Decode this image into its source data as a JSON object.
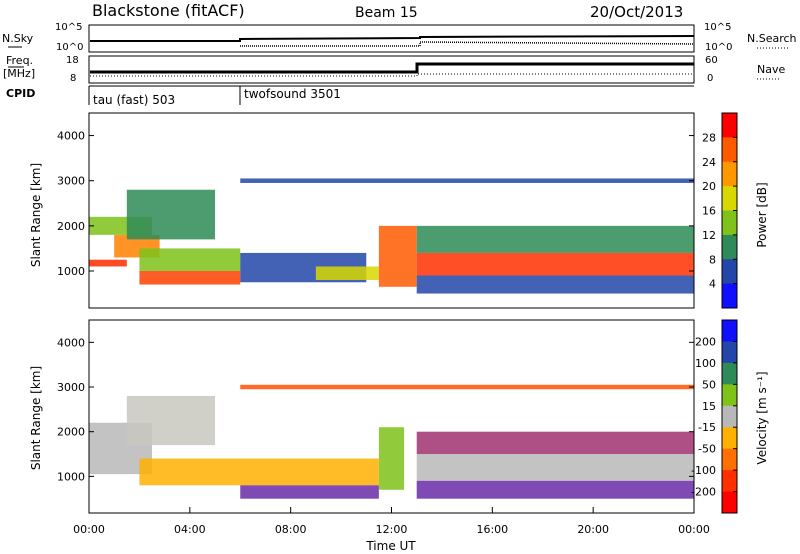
{
  "header": {
    "station": "Blackstone (fitACF)",
    "beam": "Beam 15",
    "date": "20/Oct/2013"
  },
  "top_panels": {
    "nsky_label": "N.Sky",
    "nsearch_label": "N.Search",
    "nsky_ticks": [
      "10^5",
      "10^0"
    ],
    "nsearch_ticks": [
      "10^5",
      "10^0"
    ],
    "freq_label_1": "Freq.",
    "freq_label_2": "[MHz]",
    "freq_ticks": [
      "18",
      "8"
    ],
    "nave_label": "Nave",
    "nave_ticks": [
      "60",
      "0"
    ],
    "cpid_label": "CPID",
    "cpid_segments": [
      {
        "label": "tau (fast) 503",
        "start_hour": 0
      },
      {
        "label": "twofsound 3501",
        "start_hour": 6
      }
    ],
    "freq_mode_change_hour": 13
  },
  "chart_data": [
    {
      "type": "heatmap",
      "name": "power",
      "ylabel": "Slant Range [km]",
      "colorbar_label": "Power [dB]",
      "colorbar_ticks": [
        "28",
        "24",
        "20",
        "16",
        "12",
        "8",
        "4"
      ],
      "colorbar_colors": [
        "#ff0000",
        "#ff5a00",
        "#ff9800",
        "#d8d800",
        "#7ec21a",
        "#2e8b57",
        "#2346a8",
        "#1010ff"
      ],
      "ylim": [
        180,
        4500
      ],
      "yticks": [
        "4000",
        "3000",
        "2000",
        "1000"
      ],
      "bands": [
        {
          "x0": 0.0,
          "x1": 1.5,
          "r0": 1100,
          "r1": 1250,
          "color": "#ff2a00"
        },
        {
          "x0": 1.0,
          "x1": 2.8,
          "r0": 1300,
          "r1": 1800,
          "color": "#ff8000"
        },
        {
          "x0": 0.0,
          "x1": 2.5,
          "r0": 1800,
          "r1": 2200,
          "color": "#7ec21a"
        },
        {
          "x0": 1.5,
          "x1": 5.0,
          "r0": 1700,
          "r1": 2800,
          "color": "#2e8b57"
        },
        {
          "x0": 2.0,
          "x1": 6.0,
          "r0": 700,
          "r1": 1000,
          "color": "#ff4000"
        },
        {
          "x0": 2.0,
          "x1": 6.0,
          "r0": 1000,
          "r1": 1500,
          "color": "#7ec21a"
        },
        {
          "x0": 6.0,
          "x1": 11.0,
          "r0": 750,
          "r1": 1400,
          "color": "#2346a8"
        },
        {
          "x0": 9.0,
          "x1": 11.5,
          "r0": 800,
          "r1": 1100,
          "color": "#d8d800"
        },
        {
          "x0": 11.5,
          "x1": 13.0,
          "r0": 650,
          "r1": 2000,
          "color": "#ff5a00"
        },
        {
          "x0": 13.0,
          "x1": 24.0,
          "r0": 900,
          "r1": 1400,
          "color": "#ff3000"
        },
        {
          "x0": 13.0,
          "x1": 24.0,
          "r0": 1400,
          "r1": 2000,
          "color": "#2e8b57"
        },
        {
          "x0": 13.0,
          "x1": 24.0,
          "r0": 500,
          "r1": 900,
          "color": "#2346a8"
        },
        {
          "x0": 6.0,
          "x1": 24.0,
          "r0": 2950,
          "r1": 3050,
          "color": "#2346a8"
        }
      ]
    },
    {
      "type": "heatmap",
      "name": "velocity",
      "xlabel": "Time UT",
      "ylabel": "Slant Range [km]",
      "colorbar_label": "Velocity [m s⁻¹]",
      "colorbar_ticks": [
        "200",
        "100",
        "50",
        "15",
        "-15",
        "-50",
        "-100",
        "-200"
      ],
      "colorbar_colors": [
        "#1010ff",
        "#2346a8",
        "#2e8b57",
        "#7ec21a",
        "#b8b8b8",
        "#ffb000",
        "#ff7000",
        "#ff3000",
        "#ff0000"
      ],
      "ylim": [
        180,
        4500
      ],
      "yticks": [
        "4000",
        "3000",
        "2000",
        "1000"
      ],
      "xticks": [
        "00:00",
        "04:00",
        "08:00",
        "12:00",
        "16:00",
        "20:00",
        "00:00"
      ],
      "bands": [
        {
          "x0": 0.0,
          "x1": 2.5,
          "r0": 1050,
          "r1": 2200,
          "color": "#b8b8b8"
        },
        {
          "x0": 1.5,
          "x1": 5.0,
          "r0": 1700,
          "r1": 2800,
          "color": "#c8c8c0"
        },
        {
          "x0": 2.0,
          "x1": 11.5,
          "r0": 800,
          "r1": 1400,
          "color": "#ffb000"
        },
        {
          "x0": 6.0,
          "x1": 11.5,
          "r0": 500,
          "r1": 800,
          "color": "#6a2aa8"
        },
        {
          "x0": 11.5,
          "x1": 12.5,
          "r0": 700,
          "r1": 2100,
          "color": "#7ec21a"
        },
        {
          "x0": 13.0,
          "x1": 24.0,
          "r0": 900,
          "r1": 1500,
          "color": "#b8b8b8"
        },
        {
          "x0": 13.0,
          "x1": 24.0,
          "r0": 1500,
          "r1": 2000,
          "color": "#a03070"
        },
        {
          "x0": 13.0,
          "x1": 24.0,
          "r0": 500,
          "r1": 900,
          "color": "#6a2aa8"
        },
        {
          "x0": 6.0,
          "x1": 24.0,
          "r0": 2950,
          "r1": 3050,
          "color": "#ff5000"
        }
      ]
    }
  ]
}
